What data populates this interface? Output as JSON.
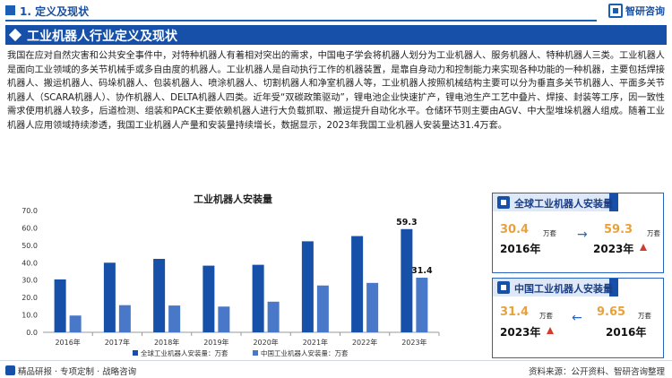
{
  "header": {
    "section": "1. 定义及现状",
    "brand": "智研咨询"
  },
  "title": "工业机器人行业定义及现状",
  "paragraph": "我国在应对自然灾害和公共安全事件中，对特种机器人有着相对突出的需求，中国电子学会将机器人划分为工业机器人、服务机器人、特种机器人三类。工业机器人是面向工业领域的多关节机械手或多自由度的机器人。工业机器人是自动执行工作的机器装置，是靠自身动力和控制能力来实现各种功能的一种机器，主要包括焊接机器人、搬运机器人、码垛机器人、包装机器人、喷涂机器人、切割机器人和净室机器人等，工业机器人按照机械结构主要可以分为垂直多关节机器人、平面多关节机器人（SCARA机器人）、协作机器人、DELTA机器人四类。近年受“双碳政策驱动”，锂电池企业快速扩产，锂电池生产工艺中叠片、焊接、封装等工序，因一致性需求使用机器人较多，后道检测、组装和PACK主要依赖机器人进行大负载抓取、搬运提升自动化水平。仓储环节则主要由AGV、中大型堆垛机器人组成。随着工业机器人应用领域持续渗透，我国工业机器人产量和安装量持续增长，数据显示，2023年我国工业机器人安装量达31.4万套。",
  "chart_data": {
    "type": "bar",
    "title": "工业机器人安装量",
    "categories": [
      "2016年",
      "2017年",
      "2018年",
      "2019年",
      "2020年",
      "2021年",
      "2022年",
      "2023年"
    ],
    "series": [
      {
        "name": "全球工业机器人安装量：万套",
        "color": "#1650a8",
        "values": [
          30.4,
          40.0,
          42.2,
          38.3,
          38.8,
          52.3,
          55.3,
          59.3
        ]
      },
      {
        "name": "中国工业机器人安装量：万套",
        "color": "#4a78c8",
        "values": [
          9.65,
          15.6,
          15.4,
          14.8,
          17.6,
          26.9,
          28.4,
          31.4
        ]
      }
    ],
    "data_labels": {
      "global_2023": "59.3",
      "china_2023": "31.4"
    },
    "y_ticks": [
      "0.0",
      "10.0",
      "20.0",
      "30.0",
      "40.0",
      "50.0",
      "60.0",
      "70.0"
    ],
    "ylim": [
      0,
      70
    ],
    "grid": false,
    "legend_position": "bottom"
  },
  "cards": {
    "global": {
      "title": "全球工业机器人安装量",
      "from_value": "30.4",
      "from_unit": "万套",
      "from_year": "2016年",
      "to_value": "59.3",
      "to_unit": "万套",
      "to_year": "2023年"
    },
    "china": {
      "title": "中国工业机器人安装量",
      "left_value": "31.4",
      "left_unit": "万套",
      "left_year": "2023年",
      "right_value": "9.65",
      "right_unit": "万套",
      "right_year": "2016年"
    }
  },
  "footer": {
    "left": "精品研报 · 专项定制 · 战略咨询",
    "right": "资料来源：公开资料、智研咨询整理"
  }
}
